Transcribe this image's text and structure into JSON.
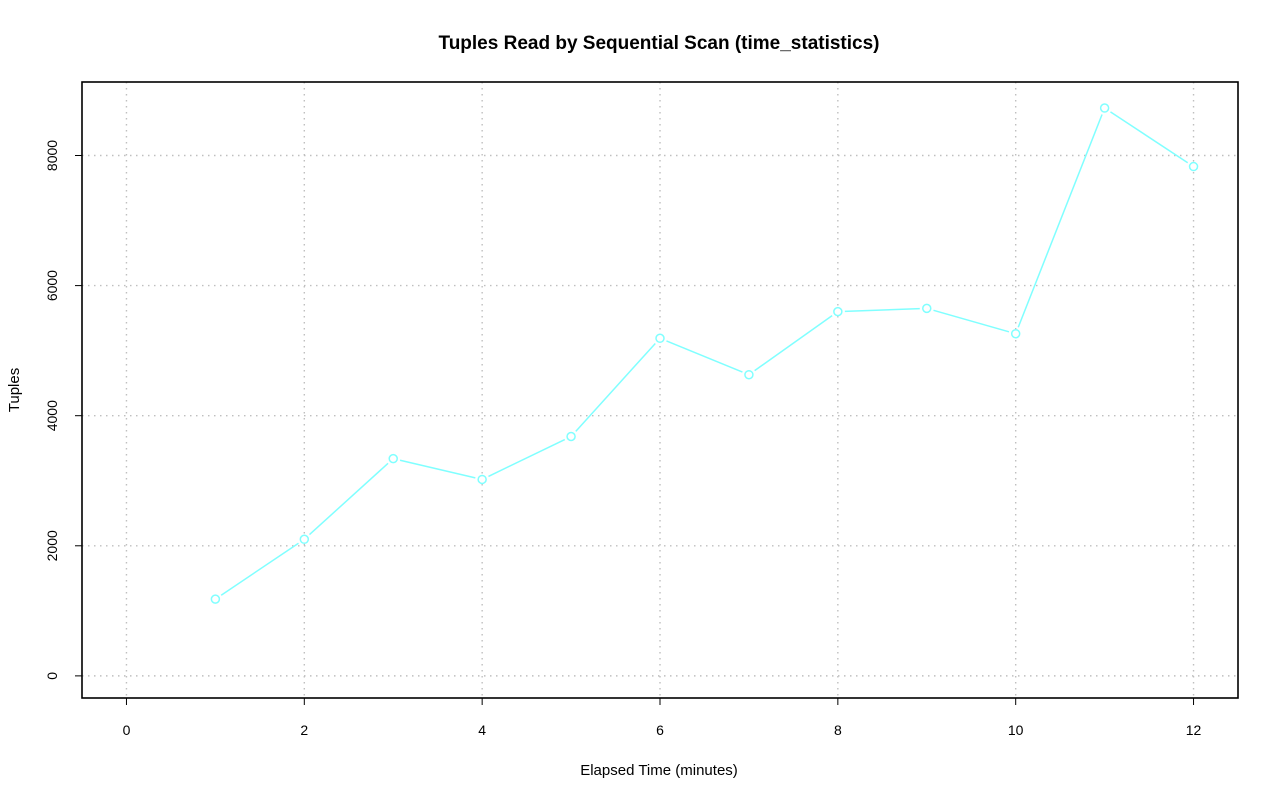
{
  "chart_data": {
    "type": "line",
    "title": "Tuples Read by Sequential Scan (time_statistics)",
    "xlabel": "Elapsed Time (minutes)",
    "ylabel": "Tuples",
    "xlim": [
      -0.5,
      12.5
    ],
    "ylim": [
      -340,
      9130
    ],
    "x_ticks": [
      0,
      2,
      4,
      6,
      8,
      10,
      12
    ],
    "y_ticks": [
      0,
      2000,
      4000,
      6000,
      8000
    ],
    "grid": true,
    "series": [
      {
        "color": "#80ffff",
        "marker": "open-circle",
        "x": [
          1,
          2,
          3,
          4,
          5,
          6,
          7,
          8,
          9,
          10,
          11,
          12
        ],
        "y": [
          1180,
          2100,
          3340,
          3020,
          3680,
          5190,
          4630,
          5600,
          5650,
          5260,
          8730,
          7830
        ]
      }
    ]
  }
}
